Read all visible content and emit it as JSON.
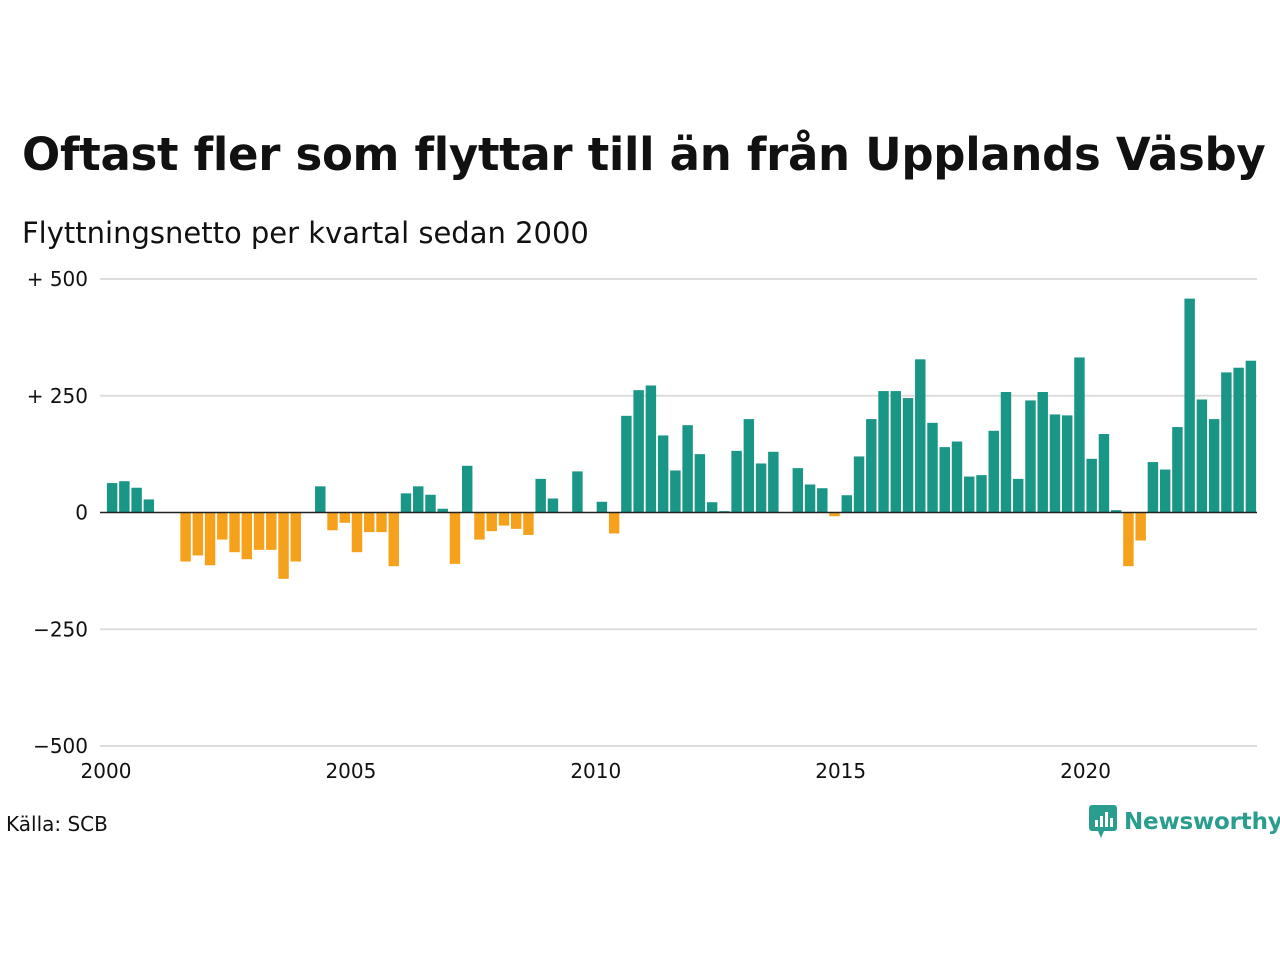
{
  "chart_data": {
    "type": "bar",
    "title": "Oftast fler som flyttar till än från Upplands Väsby",
    "subtitle": "Flyttningsnetto per kvartal sedan 2000",
    "x_start": 2000.0,
    "x_step_years": 0.25,
    "values": [
      63,
      67,
      53,
      28,
      0,
      0,
      -105,
      -92,
      -113,
      -58,
      -85,
      -100,
      -80,
      -80,
      -142,
      -105,
      0,
      56,
      -38,
      -22,
      -85,
      -42,
      -42,
      -115,
      41,
      56,
      38,
      8,
      -110,
      100,
      -58,
      -40,
      -28,
      -35,
      -48,
      72,
      30,
      0,
      88,
      0,
      23,
      -45,
      207,
      262,
      272,
      165,
      90,
      187,
      125,
      22,
      3,
      132,
      200,
      105,
      130,
      0,
      95,
      60,
      52,
      -8,
      37,
      120,
      200,
      260,
      260,
      245,
      328,
      192,
      140,
      152,
      77,
      80,
      175,
      258,
      72,
      240,
      258,
      210,
      208,
      332,
      115,
      168,
      5,
      -115,
      -60,
      108,
      92,
      183,
      458,
      242,
      200,
      300,
      310,
      325
    ],
    "positive_color": "#1a9686",
    "negative_color": "#f5a11c",
    "xlim": [
      2000,
      2023.5
    ],
    "ylim": [
      -500,
      500
    ],
    "y_ticks": [
      {
        "value": 500,
        "label": "+ 500"
      },
      {
        "value": 250,
        "label": "+ 250"
      },
      {
        "value": 0,
        "label": "0"
      },
      {
        "value": -250,
        "label": "−250"
      },
      {
        "value": -500,
        "label": "−500"
      }
    ],
    "x_ticks": [
      {
        "value": 2000,
        "label": "2000"
      },
      {
        "value": 2005,
        "label": "2005"
      },
      {
        "value": 2010,
        "label": "2010"
      },
      {
        "value": 2015,
        "label": "2015"
      },
      {
        "value": 2020,
        "label": "2020"
      }
    ],
    "grid": true
  },
  "source": "Källa: SCB",
  "brand": "Newsworthy",
  "brand_color": "#2a9d8f",
  "brand_icon": "newsworthy-logo-icon"
}
